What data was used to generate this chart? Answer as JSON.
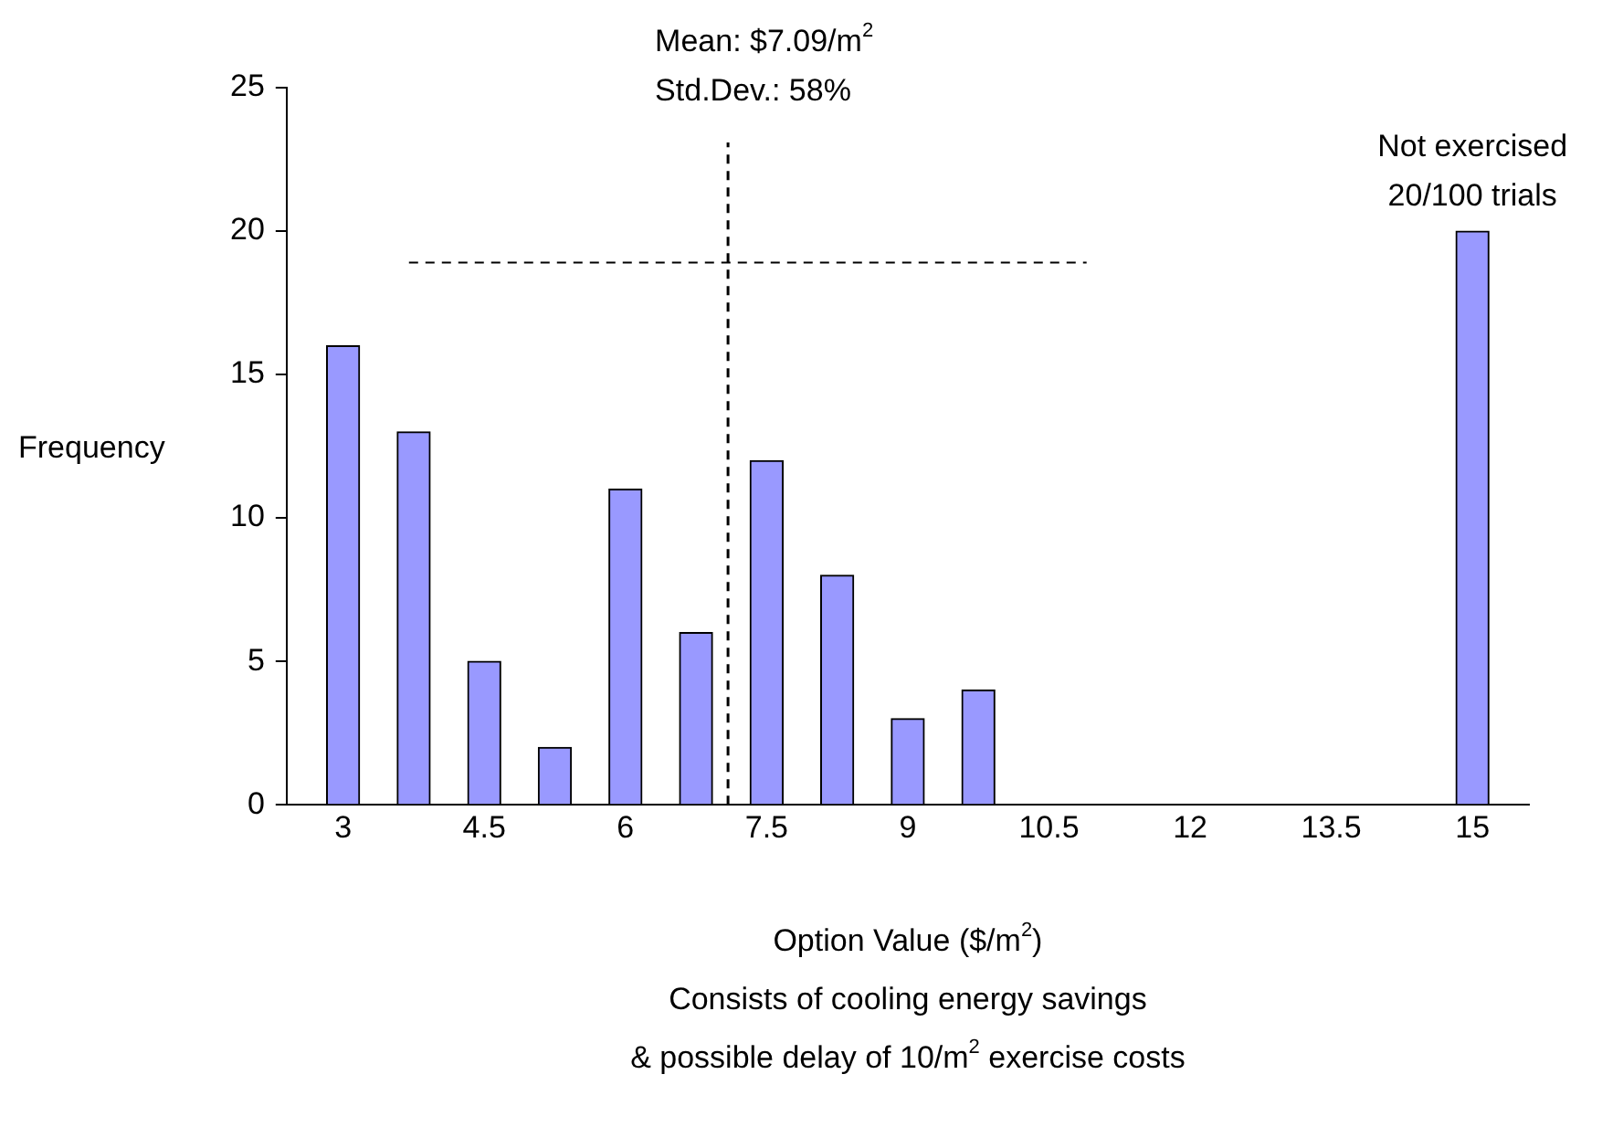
{
  "chart_data": {
    "type": "bar",
    "xlabel": "Option Value ($/m$^{2}$)",
    "ylabel": "Frequency",
    "x": [
      3,
      3.75,
      4.5,
      5.25,
      6,
      6.75,
      7.5,
      8.25,
      9,
      9.75,
      10.5,
      11.25,
      12,
      12.75,
      13.5,
      14.25,
      15
    ],
    "series": [
      {
        "color": "#9999ff",
        "values": [
          16,
          13,
          5,
          2,
          11,
          6,
          12,
          8,
          3,
          4,
          0,
          0,
          0,
          0,
          0,
          0,
          20
        ]
      },
      {
        "type": "line",
        "color": "#000000",
        "marker": "none",
        "line_style": "dashed",
        "x": [
          3.7,
          10.9
        ],
        "values": [
          18.9,
          18.9
        ]
      }
    ],
    "xlim": [
      2.4,
      15.6
    ],
    "xticks": [
      3,
      4.5,
      6,
      7.5,
      9,
      10.5,
      12,
      13.5,
      15
    ],
    "ylim": [
      0,
      25
    ],
    "yticks": [
      0,
      5,
      10,
      15,
      20,
      25
    ],
    "grid": false,
    "ref_lines": [
      {
        "axis": "x",
        "value": 7.09,
        "label": "Mean: $7.09/m$^{2}$\nStd.Dev.: 58%",
        "color": "#000000",
        "line_style": "dashed"
      }
    ],
    "annotations": [
      {
        "text": "Not exercised\n20/100 trials",
        "x": 15,
        "y": 20
      },
      "Consists of cooling energy savings",
      "& possible delay of 10/m$^{2}$ exercise costs"
    ]
  }
}
